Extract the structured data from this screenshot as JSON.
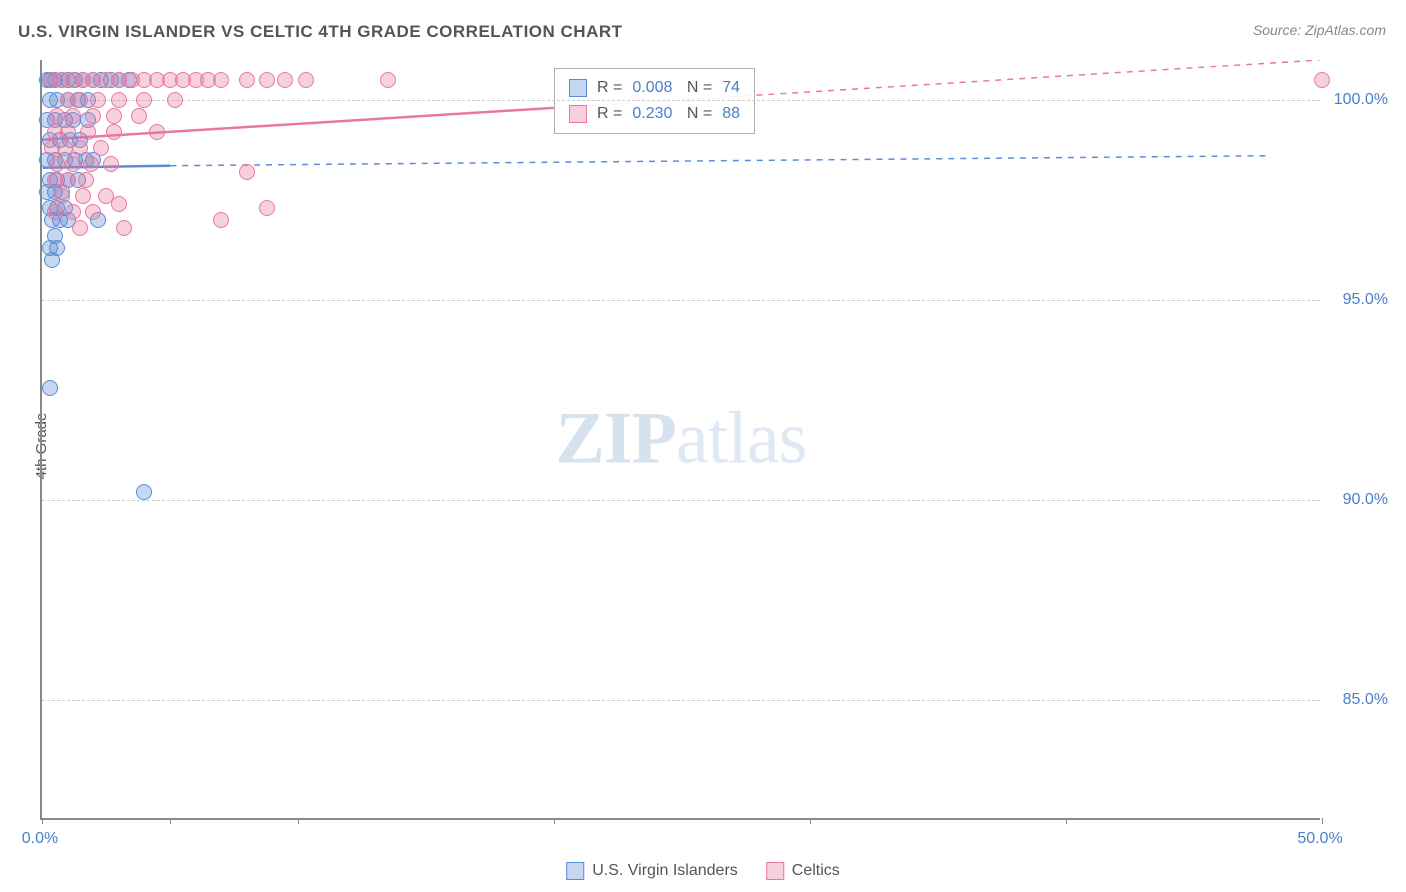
{
  "title": "U.S. VIRGIN ISLANDER VS CELTIC 4TH GRADE CORRELATION CHART",
  "source": "Source: ZipAtlas.com",
  "y_axis_label": "4th Grade",
  "watermark": {
    "zip": "ZIP",
    "atlas": "atlas"
  },
  "chart": {
    "type": "scatter",
    "background_color": "#ffffff",
    "grid_color": "#cccccc",
    "axis_color": "#888888",
    "xlim": [
      0,
      50
    ],
    "ylim": [
      82,
      101
    ],
    "y_ticks": [
      {
        "value": 85,
        "label": "85.0%"
      },
      {
        "value": 90,
        "label": "90.0%"
      },
      {
        "value": 95,
        "label": "95.0%"
      },
      {
        "value": 100,
        "label": "100.0%"
      }
    ],
    "x_ticks": [
      0,
      5,
      10,
      20,
      30,
      40,
      50
    ],
    "x_tick_labels": [
      {
        "value": 0,
        "label": "0.0%"
      },
      {
        "value": 50,
        "label": "50.0%"
      }
    ],
    "marker_radius": 8,
    "marker_border_width": 1.5,
    "series": [
      {
        "name": "U.S. Virgin Islanders",
        "fill_color": "rgba(91,141,214,0.35)",
        "stroke_color": "#5b8dd6",
        "R": "0.008",
        "N": "74",
        "trend": {
          "x1": 0,
          "y1": 98.3,
          "x2": 5,
          "y2": 98.35,
          "x2_dash": 48,
          "y2_dash": 98.6,
          "solid_width": 2.5,
          "dash_pattern": "6,6"
        },
        "points": [
          [
            0.2,
            100.5
          ],
          [
            0.3,
            100.5
          ],
          [
            0.5,
            100.5
          ],
          [
            0.8,
            100.5
          ],
          [
            1.0,
            100.5
          ],
          [
            1.3,
            100.5
          ],
          [
            1.6,
            100.5
          ],
          [
            2.0,
            100.5
          ],
          [
            2.3,
            100.5
          ],
          [
            2.7,
            100.5
          ],
          [
            3.0,
            100.5
          ],
          [
            3.4,
            100.5
          ],
          [
            0.3,
            100.0
          ],
          [
            0.6,
            100.0
          ],
          [
            1.0,
            100.0
          ],
          [
            1.4,
            100.0
          ],
          [
            1.8,
            100.0
          ],
          [
            0.2,
            99.5
          ],
          [
            0.5,
            99.5
          ],
          [
            0.9,
            99.5
          ],
          [
            1.2,
            99.5
          ],
          [
            1.8,
            99.5
          ],
          [
            0.3,
            99.0
          ],
          [
            0.7,
            99.0
          ],
          [
            1.1,
            99.0
          ],
          [
            1.5,
            99.0
          ],
          [
            0.2,
            98.5
          ],
          [
            0.5,
            98.5
          ],
          [
            0.9,
            98.5
          ],
          [
            1.3,
            98.5
          ],
          [
            1.7,
            98.5
          ],
          [
            2.0,
            98.5
          ],
          [
            0.3,
            98.0
          ],
          [
            0.6,
            98.0
          ],
          [
            1.0,
            98.0
          ],
          [
            1.4,
            98.0
          ],
          [
            0.2,
            97.7
          ],
          [
            0.5,
            97.7
          ],
          [
            0.8,
            97.7
          ],
          [
            0.3,
            97.3
          ],
          [
            0.6,
            97.3
          ],
          [
            0.9,
            97.3
          ],
          [
            0.4,
            97.0
          ],
          [
            0.7,
            97.0
          ],
          [
            1.0,
            97.0
          ],
          [
            2.2,
            97.0
          ],
          [
            0.5,
            96.6
          ],
          [
            0.3,
            96.3
          ],
          [
            0.6,
            96.3
          ],
          [
            0.4,
            96.0
          ],
          [
            0.3,
            92.8
          ],
          [
            4.0,
            90.2
          ]
        ]
      },
      {
        "name": "Celtics",
        "fill_color": "rgba(233,120,159,0.35)",
        "stroke_color": "#e9789f",
        "R": "0.230",
        "N": "88",
        "trend": {
          "x1": 0,
          "y1": 99.0,
          "x2": 20,
          "y2": 99.8,
          "x2_dash": 50,
          "y2_dash": 101.0,
          "solid_width": 2.5,
          "dash_pattern": "6,6"
        },
        "points": [
          [
            0.4,
            100.5
          ],
          [
            0.8,
            100.5
          ],
          [
            1.2,
            100.5
          ],
          [
            1.6,
            100.5
          ],
          [
            2.0,
            100.5
          ],
          [
            2.5,
            100.5
          ],
          [
            3.0,
            100.5
          ],
          [
            3.5,
            100.5
          ],
          [
            4.0,
            100.5
          ],
          [
            4.5,
            100.5
          ],
          [
            5.0,
            100.5
          ],
          [
            5.5,
            100.5
          ],
          [
            6.0,
            100.5
          ],
          [
            6.5,
            100.5
          ],
          [
            7.0,
            100.5
          ],
          [
            8.0,
            100.5
          ],
          [
            8.8,
            100.5
          ],
          [
            9.5,
            100.5
          ],
          [
            10.3,
            100.5
          ],
          [
            13.5,
            100.5
          ],
          [
            50.0,
            100.5
          ],
          [
            1.0,
            100.0
          ],
          [
            1.5,
            100.0
          ],
          [
            2.2,
            100.0
          ],
          [
            3.0,
            100.0
          ],
          [
            4.0,
            100.0
          ],
          [
            5.2,
            100.0
          ],
          [
            0.6,
            99.6
          ],
          [
            1.2,
            99.6
          ],
          [
            2.0,
            99.6
          ],
          [
            2.8,
            99.6
          ],
          [
            3.8,
            99.6
          ],
          [
            0.5,
            99.2
          ],
          [
            1.0,
            99.2
          ],
          [
            1.8,
            99.2
          ],
          [
            2.8,
            99.2
          ],
          [
            4.5,
            99.2
          ],
          [
            0.4,
            98.8
          ],
          [
            0.9,
            98.8
          ],
          [
            1.5,
            98.8
          ],
          [
            2.3,
            98.8
          ],
          [
            0.6,
            98.4
          ],
          [
            1.2,
            98.4
          ],
          [
            1.9,
            98.4
          ],
          [
            2.7,
            98.4
          ],
          [
            0.5,
            98.0
          ],
          [
            1.0,
            98.0
          ],
          [
            1.7,
            98.0
          ],
          [
            8.0,
            98.2
          ],
          [
            0.8,
            97.6
          ],
          [
            1.6,
            97.6
          ],
          [
            2.5,
            97.6
          ],
          [
            0.5,
            97.2
          ],
          [
            1.2,
            97.2
          ],
          [
            2.0,
            97.2
          ],
          [
            3.0,
            97.4
          ],
          [
            8.8,
            97.3
          ],
          [
            1.5,
            96.8
          ],
          [
            3.2,
            96.8
          ],
          [
            7.0,
            97.0
          ]
        ]
      }
    ]
  },
  "legend_bottom": [
    {
      "label": "U.S. Virgin Islanders",
      "fill": "rgba(91,141,214,0.35)",
      "stroke": "#5b8dd6"
    },
    {
      "label": "Celtics",
      "fill": "rgba(233,120,159,0.35)",
      "stroke": "#e9789f"
    }
  ]
}
